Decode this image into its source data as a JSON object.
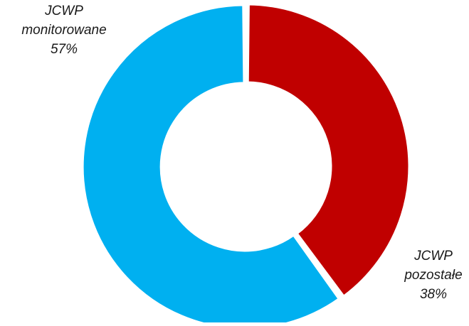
{
  "chart_data": {
    "type": "pie",
    "variant": "donut",
    "slices": [
      {
        "name_line1": "JCWP",
        "name_line2": "pozostałe",
        "value_label": "38%",
        "value": 38,
        "color": "#C00000"
      },
      {
        "name_line1": "JCWP",
        "name_line2": "monitorowane",
        "value_label": "57%",
        "value": 57,
        "color": "#00B0F0"
      }
    ],
    "legend": "none"
  }
}
